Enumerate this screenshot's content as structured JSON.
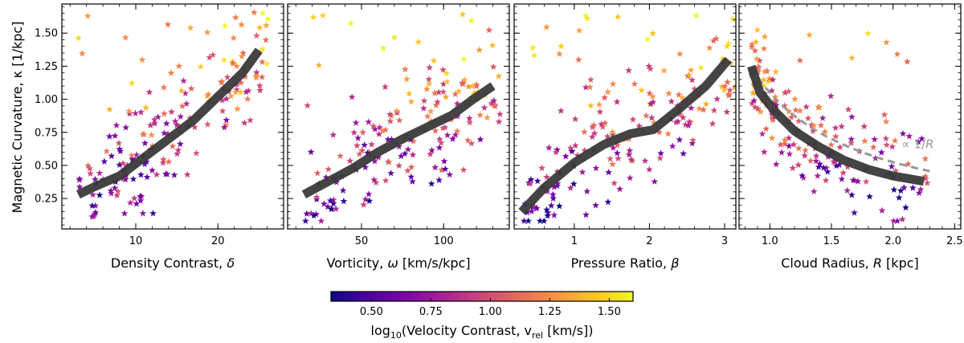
{
  "figure": {
    "ylabel": "Magnetic Curvature, κ [1/kpc]",
    "colorbar_label": "log10(Velocity Contrast, v_rel [km/s])",
    "colorbar_label_main": "log",
    "colorbar_label_sub": "10",
    "colorbar_label_rest": "(Velocity Contrast, v",
    "colorbar_label_rel": "rel",
    "colorbar_label_end": " [km/s])",
    "colormap_stops": [
      "#0d0887",
      "#46039f",
      "#7201a8",
      "#9c179e",
      "#bd3786",
      "#d8576b",
      "#ed7953",
      "#fb9f3a",
      "#fdca26",
      "#f0f921"
    ]
  },
  "chart_data": [
    {
      "type": "scatter",
      "xlabel": "Density Contrast, δ",
      "xlabel_text": "Density Contrast, ",
      "xlabel_sym": "δ",
      "xlabel_unit": "",
      "xlim": [
        1,
        28
      ],
      "xticks": [
        10,
        20
      ],
      "xtick_labels": [
        "10",
        "20"
      ],
      "ylim": [
        0.02,
        1.72
      ],
      "yticks": [
        0.25,
        0.5,
        0.75,
        1.0,
        1.25,
        1.5
      ],
      "ytick_labels": [
        "0.25",
        "0.50",
        "0.75",
        "1.00",
        "1.25",
        "1.50"
      ],
      "trend": {
        "x": [
          3,
          5,
          8,
          11,
          14,
          17,
          20,
          23,
          25
        ],
        "y": [
          0.28,
          0.34,
          0.42,
          0.56,
          0.7,
          0.84,
          1.02,
          1.2,
          1.37
        ]
      },
      "scatter_seed": 11
    },
    {
      "type": "scatter",
      "xlabel": "Vorticity, ω [km/s/kpc]",
      "xlabel_text": "Vorticity, ",
      "xlabel_sym": "ω",
      "xlabel_unit": " [km/s/kpc]",
      "xlim": [
        5,
        140
      ],
      "xticks": [
        50,
        100
      ],
      "xtick_labels": [
        "50",
        "100"
      ],
      "ylim": [
        0.02,
        1.72
      ],
      "yticks": [
        0.25,
        0.5,
        0.75,
        1.0,
        1.25,
        1.5
      ],
      "ytick_labels": [
        "",
        "",
        "",
        "",
        "",
        ""
      ],
      "trend": {
        "x": [
          15,
          30,
          45,
          60,
          75,
          90,
          105,
          118,
          130
        ],
        "y": [
          0.28,
          0.38,
          0.48,
          0.6,
          0.7,
          0.79,
          0.88,
          1.0,
          1.1
        ]
      },
      "scatter_seed": 23
    },
    {
      "type": "scatter",
      "xlabel": "Pressure Ratio, β",
      "xlabel_text": "Pressure Ratio, ",
      "xlabel_sym": "β",
      "xlabel_unit": "",
      "xlim": [
        0.2,
        3.15
      ],
      "xticks": [
        1,
        2,
        3
      ],
      "xtick_labels": [
        "1",
        "2",
        "3"
      ],
      "ylim": [
        0.02,
        1.72
      ],
      "yticks": [
        0.25,
        0.5,
        0.75,
        1.0,
        1.25,
        1.5
      ],
      "ytick_labels": [
        "",
        "",
        "",
        "",
        "",
        ""
      ],
      "trend": {
        "x": [
          0.3,
          0.6,
          1.0,
          1.4,
          1.75,
          2.05,
          2.4,
          2.75,
          3.05
        ],
        "y": [
          0.15,
          0.33,
          0.52,
          0.66,
          0.74,
          0.77,
          0.93,
          1.1,
          1.3
        ]
      },
      "scatter_seed": 37
    },
    {
      "type": "scatter",
      "xlabel": "Cloud Radius, R [kpc]",
      "xlabel_text": "Cloud Radius, ",
      "xlabel_sym": "R",
      "xlabel_unit": " [kpc]",
      "xlim": [
        0.75,
        2.55
      ],
      "xticks": [
        1.0,
        1.5,
        2.0,
        2.5
      ],
      "xtick_labels": [
        "1.0",
        "1.5",
        "2.0",
        "2.5"
      ],
      "ylim": [
        0.02,
        1.72
      ],
      "yticks": [
        0.25,
        0.5,
        0.75,
        1.0,
        1.25,
        1.5
      ],
      "ytick_labels": [
        "",
        "",
        "",
        "",
        "",
        ""
      ],
      "trend": {
        "x": [
          0.85,
          0.92,
          1.05,
          1.2,
          1.4,
          1.6,
          1.8,
          2.0,
          2.25
        ],
        "y": [
          1.25,
          1.05,
          0.9,
          0.76,
          0.64,
          0.54,
          0.47,
          0.42,
          0.38
        ]
      },
      "reference_curve": {
        "label": "∝ 1/R",
        "label_text": "∝ 1/",
        "label_sym": "R",
        "coefficient": 1.05,
        "x_from": 0.85,
        "x_to": 2.3
      },
      "scatter_seed": 53
    },
    {
      "type": "colorbar",
      "range": [
        0.33,
        1.6
      ],
      "ticks": [
        0.5,
        0.75,
        1.0,
        1.25,
        1.5
      ],
      "tick_labels": [
        "0.50",
        "0.75",
        "1.00",
        "1.25",
        "1.50"
      ]
    }
  ]
}
